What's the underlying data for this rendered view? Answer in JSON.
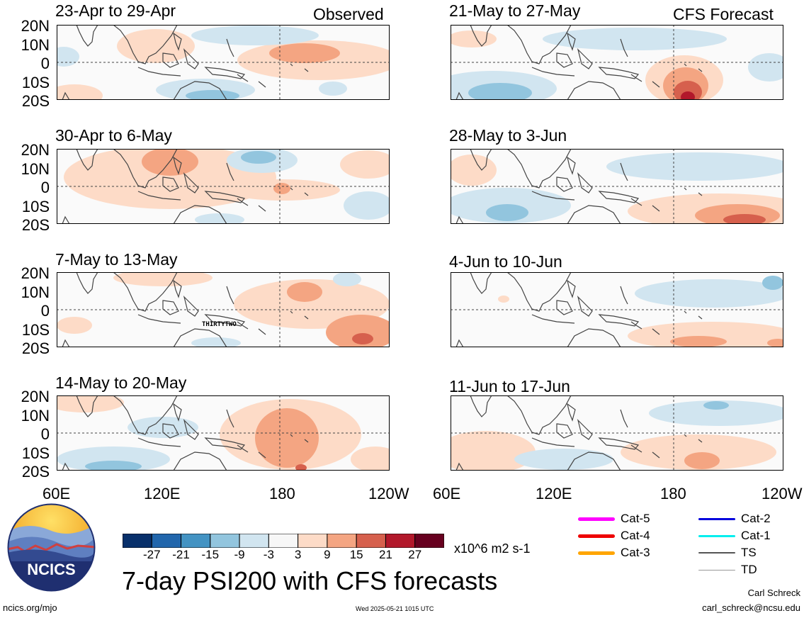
{
  "header": {
    "observed_label": "Observed",
    "forecast_label": "CFS Forecast"
  },
  "lat_labels": [
    "20N",
    "10N",
    "0",
    "10S",
    "20S"
  ],
  "lon_labels": [
    "60E",
    "120E",
    "180",
    "120W"
  ],
  "panels_left": [
    {
      "title": "23-Apr to 29-Apr"
    },
    {
      "title": "30-Apr to 6-May"
    },
    {
      "title": "7-May to 13-May",
      "annotation": "THIRTYTWO"
    },
    {
      "title": "14-May to 20-May"
    }
  ],
  "panels_right": [
    {
      "title": "21-May to 27-May"
    },
    {
      "title": "28-May to 3-Jun"
    },
    {
      "title": "4-Jun to 10-Jun"
    },
    {
      "title": "11-Jun to 17-Jun"
    }
  ],
  "colorbar": {
    "ticks": [
      "-27",
      "-21",
      "-15",
      "-9",
      "-3",
      "3",
      "9",
      "15",
      "21",
      "27"
    ],
    "colors": [
      "#08306b",
      "#2166ac",
      "#4393c3",
      "#92c5de",
      "#d1e5f0",
      "#f7f7f7",
      "#fddbc7",
      "#f4a582",
      "#d6604d",
      "#b2182b",
      "#67001f"
    ],
    "units": "x10^6 m2 s-1"
  },
  "title": "7-day PSI200 with CFS forecasts",
  "logo": {
    "text": "NCICS"
  },
  "legend": [
    {
      "label": "Cat-5",
      "color": "#ff00ff"
    },
    {
      "label": "Cat-4",
      "color": "#ee0000"
    },
    {
      "label": "Cat-3",
      "color": "#ffa500"
    },
    {
      "label": "Cat-2",
      "color": "#0000dd"
    },
    {
      "label": "Cat-1",
      "color": "#00eeee"
    },
    {
      "label": "TS",
      "color": "#555555"
    },
    {
      "label": "TD",
      "color": "#999999"
    }
  ],
  "footer": {
    "url": "ncics.org/mjo",
    "timestamp": "Wed 2025-05-21 1015 UTC",
    "author": "Carl Schreck",
    "email": "carl_schreck@ncsu.edu"
  }
}
